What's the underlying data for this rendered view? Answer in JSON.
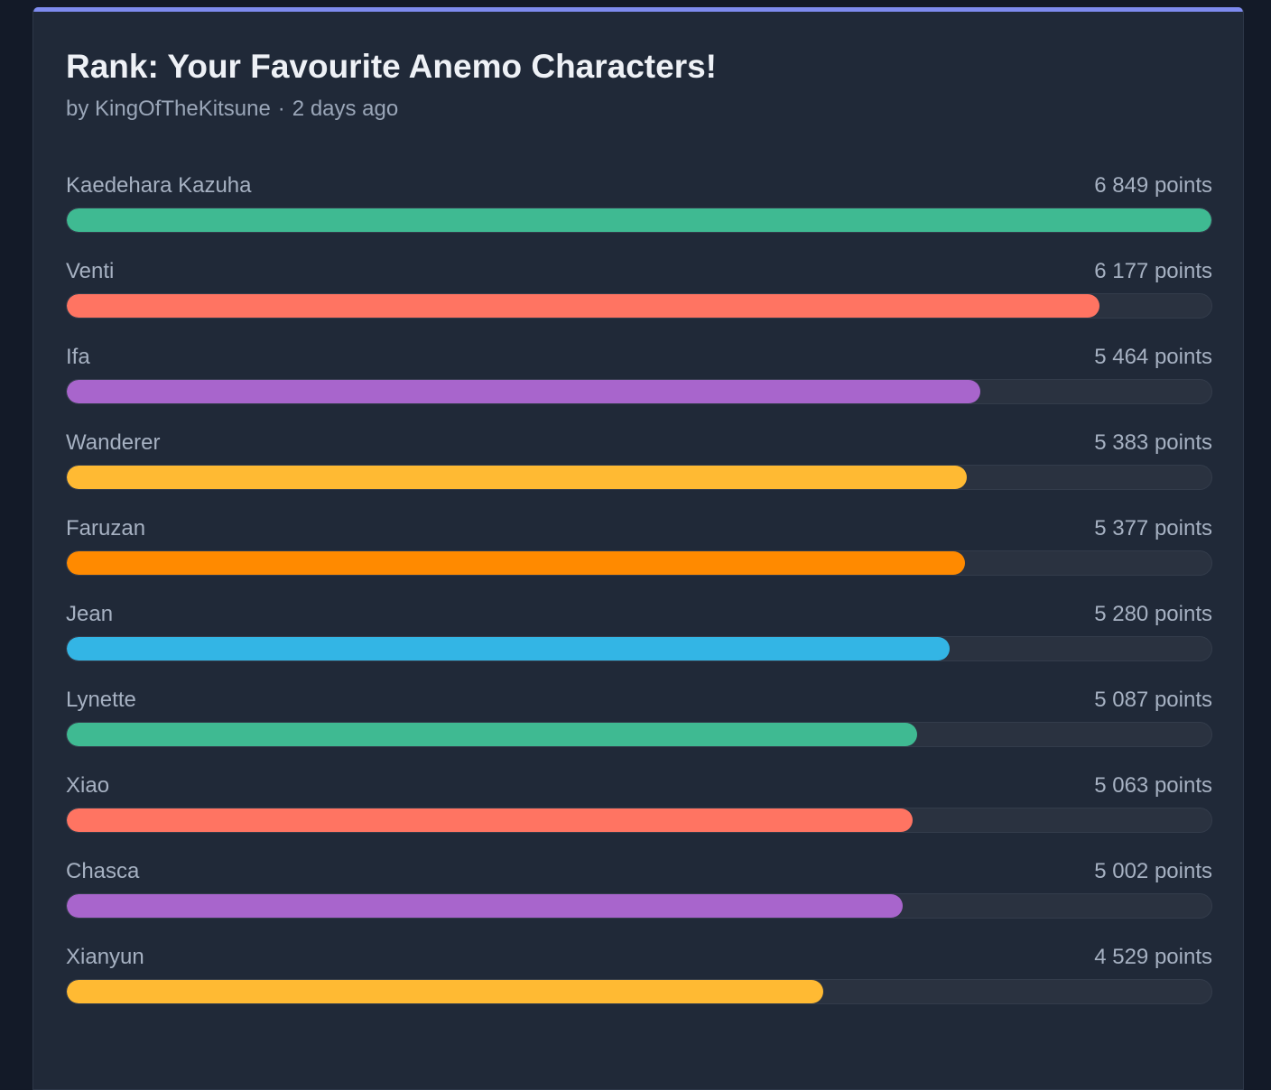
{
  "poll": {
    "title": "Rank: Your Favourite Anemo Characters!",
    "author": "by KingOfTheKitsune",
    "separator": "·",
    "posted": "2 days ago"
  },
  "results": [
    {
      "name": "Kaedehara Kazuha",
      "points": 6849,
      "points_label": "6 849 points",
      "color": "#3fba92"
    },
    {
      "name": "Venti",
      "points": 6177,
      "points_label": "6 177 points",
      "color": "#ff7462"
    },
    {
      "name": "Ifa",
      "points": 5464,
      "points_label": "5 464 points",
      "color": "#a865cc"
    },
    {
      "name": "Wanderer",
      "points": 5383,
      "points_label": "5 383 points",
      "color": "#ffba33"
    },
    {
      "name": "Faruzan",
      "points": 5377,
      "points_label": "5 377 points",
      "color": "#ff8a00"
    },
    {
      "name": "Jean",
      "points": 5280,
      "points_label": "5 280 points",
      "color": "#33b5e5"
    },
    {
      "name": "Lynette",
      "points": 5087,
      "points_label": "5 087 points",
      "color": "#3fba92"
    },
    {
      "name": "Xiao",
      "points": 5063,
      "points_label": "5 063 points",
      "color": "#ff7462"
    },
    {
      "name": "Chasca",
      "points": 5002,
      "points_label": "5 002 points",
      "color": "#a865cc"
    },
    {
      "name": "Xianyun",
      "points": 4529,
      "points_label": "4 529 points",
      "color": "#ffba33"
    }
  ],
  "colors": {
    "accent": "#7e8bef",
    "card": "#202938",
    "page": "#131a28",
    "track": "#2a3240"
  }
}
